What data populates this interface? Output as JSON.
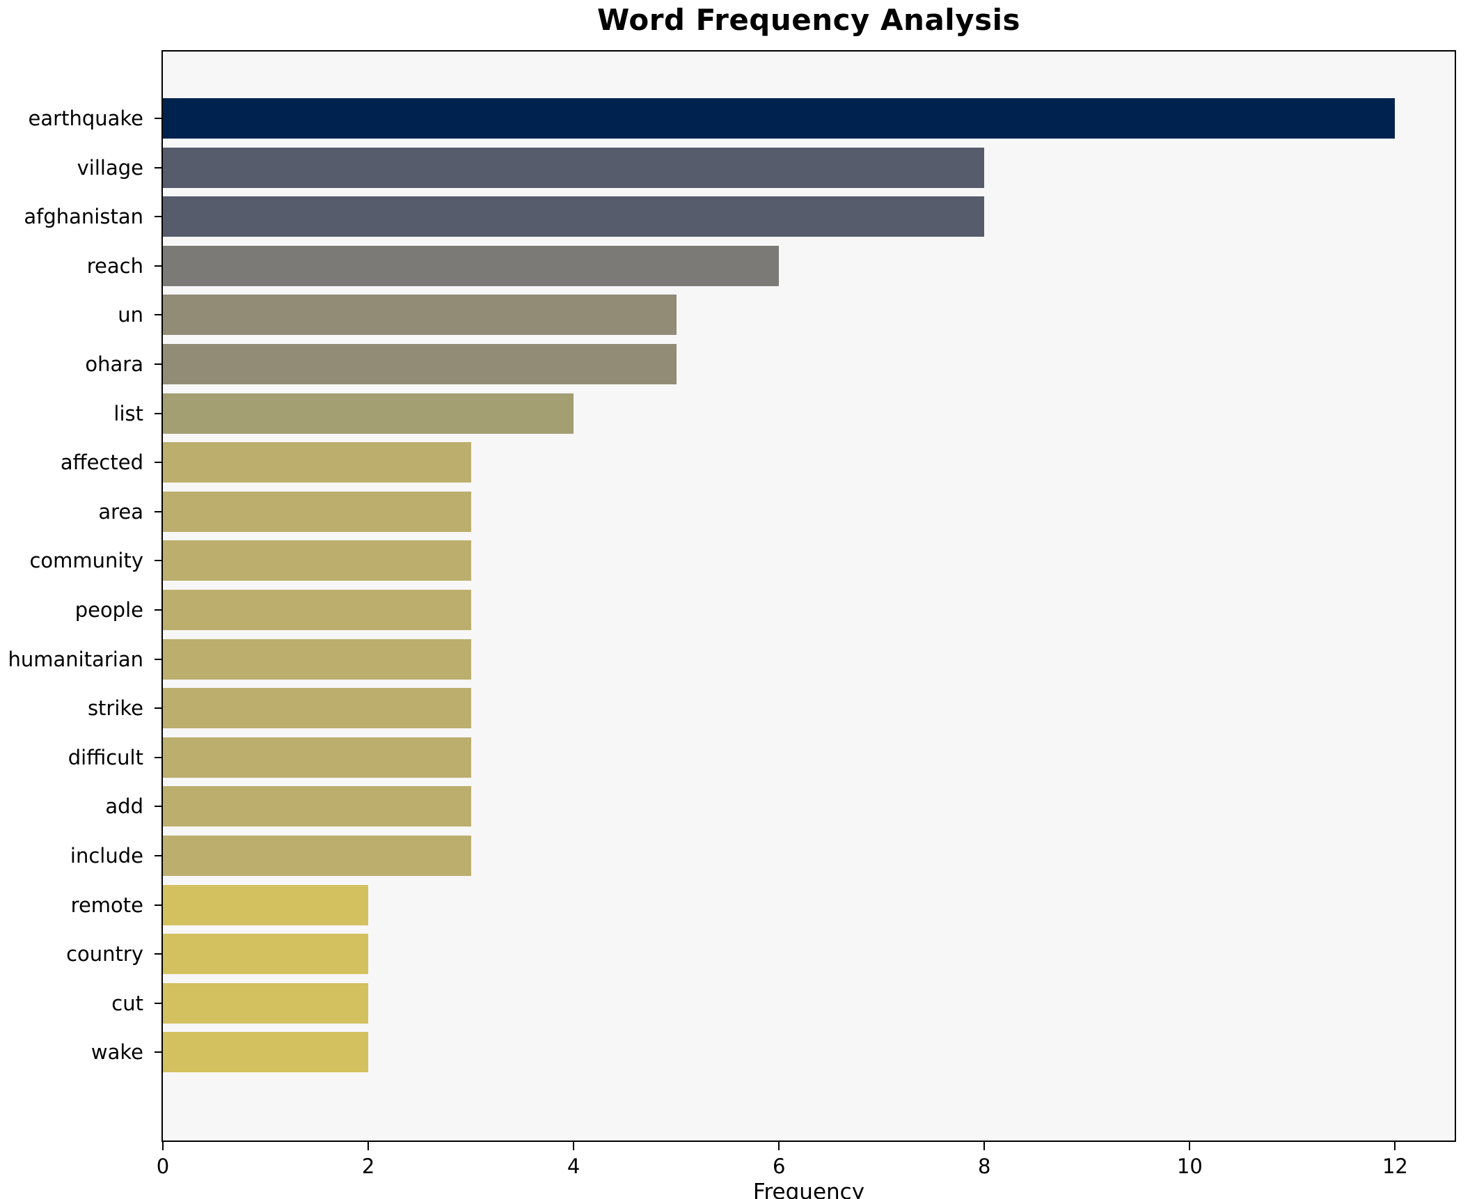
{
  "chart_data": {
    "type": "bar",
    "orientation": "horizontal",
    "title": "Word Frequency Analysis",
    "xlabel": "Frequency",
    "ylabel": "",
    "categories": [
      "earthquake",
      "village",
      "afghanistan",
      "reach",
      "un",
      "ohara",
      "list",
      "affected",
      "area",
      "community",
      "people",
      "humanitarian",
      "strike",
      "difficult",
      "add",
      "include",
      "remote",
      "country",
      "cut",
      "wake"
    ],
    "values": [
      12,
      8,
      8,
      6,
      5,
      5,
      4,
      3,
      3,
      3,
      3,
      3,
      3,
      3,
      3,
      3,
      2,
      2,
      2,
      2
    ],
    "bar_colors": [
      "#00224e",
      "#565c6c",
      "#565c6c",
      "#7b7a77",
      "#928b76",
      "#928b76",
      "#a49e73",
      "#bcae6d",
      "#bcae6d",
      "#bcae6d",
      "#bcae6d",
      "#bcae6d",
      "#bcae6d",
      "#bcae6d",
      "#bcae6d",
      "#bcae6d",
      "#d3c05f",
      "#d3c05f",
      "#d3c05f",
      "#d3c05f"
    ],
    "xticks": [
      0,
      2,
      4,
      6,
      8,
      10,
      12
    ],
    "xlim": [
      0,
      12.58
    ],
    "grid": false,
    "legend": null,
    "plot_background": "#f7f7f8",
    "spine_color": "#000000"
  }
}
